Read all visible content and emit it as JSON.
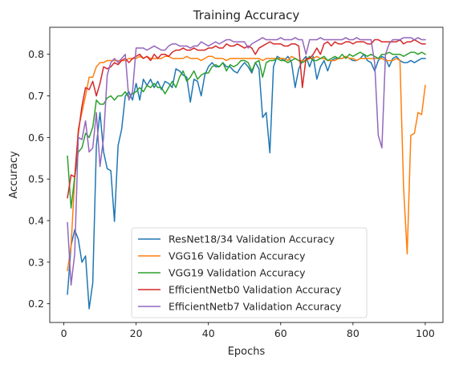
{
  "chart_data": {
    "type": "line",
    "title": "Training Accuracy",
    "xlabel": "Epochs",
    "ylabel": "Accuracy",
    "xlim": [
      -3.9,
      104.9
    ],
    "ylim": [
      0.155,
      0.865
    ],
    "xticks": [
      0,
      20,
      40,
      60,
      80,
      100
    ],
    "yticks": [
      0.2,
      0.3,
      0.4,
      0.5,
      0.6,
      0.7,
      0.8
    ],
    "grid": false,
    "legend_position": "lower-center",
    "x": [
      1,
      2,
      3,
      4,
      5,
      6,
      7,
      8,
      9,
      10,
      11,
      12,
      13,
      14,
      15,
      16,
      17,
      18,
      19,
      20,
      21,
      22,
      23,
      24,
      25,
      26,
      27,
      28,
      29,
      30,
      31,
      32,
      33,
      34,
      35,
      36,
      37,
      38,
      39,
      40,
      41,
      42,
      43,
      44,
      45,
      46,
      47,
      48,
      49,
      50,
      51,
      52,
      53,
      54,
      55,
      56,
      57,
      58,
      59,
      60,
      61,
      62,
      63,
      64,
      65,
      66,
      67,
      68,
      69,
      70,
      71,
      72,
      73,
      74,
      75,
      76,
      77,
      78,
      79,
      80,
      81,
      82,
      83,
      84,
      85,
      86,
      87,
      88,
      89,
      90,
      91,
      92,
      93,
      94,
      95,
      96,
      97,
      98,
      99,
      100
    ],
    "series": [
      {
        "name": "ResNet18/34 Validation Accuracy",
        "color": "#1f77b4",
        "values": [
          0.223,
          0.34,
          0.378,
          0.355,
          0.3,
          0.315,
          0.188,
          0.25,
          0.58,
          0.66,
          0.565,
          0.525,
          0.52,
          0.398,
          0.58,
          0.62,
          0.7,
          0.71,
          0.69,
          0.73,
          0.69,
          0.74,
          0.725,
          0.74,
          0.72,
          0.735,
          0.715,
          0.735,
          0.73,
          0.72,
          0.765,
          0.76,
          0.75,
          0.745,
          0.685,
          0.74,
          0.735,
          0.7,
          0.75,
          0.77,
          0.78,
          0.77,
          0.77,
          0.78,
          0.77,
          0.77,
          0.76,
          0.755,
          0.77,
          0.78,
          0.77,
          0.755,
          0.78,
          0.765,
          0.648,
          0.66,
          0.563,
          0.77,
          0.795,
          0.79,
          0.785,
          0.795,
          0.78,
          0.72,
          0.765,
          0.785,
          0.795,
          0.77,
          0.795,
          0.74,
          0.77,
          0.785,
          0.76,
          0.785,
          0.79,
          0.79,
          0.79,
          0.795,
          0.79,
          0.785,
          0.785,
          0.79,
          0.8,
          0.785,
          0.78,
          0.76,
          0.785,
          0.795,
          0.79,
          0.77,
          0.79,
          0.795,
          0.785,
          0.78,
          0.78,
          0.785,
          0.78,
          0.785,
          0.79,
          0.79
        ]
      },
      {
        "name": "VGG16 Validation Accuracy",
        "color": "#ff7f0e",
        "values": [
          0.28,
          0.34,
          0.5,
          0.62,
          0.66,
          0.7,
          0.745,
          0.745,
          0.77,
          0.78,
          0.78,
          0.785,
          0.785,
          0.785,
          0.785,
          0.785,
          0.785,
          0.79,
          0.79,
          0.79,
          0.795,
          0.79,
          0.795,
          0.79,
          0.79,
          0.79,
          0.79,
          0.795,
          0.795,
          0.79,
          0.79,
          0.79,
          0.79,
          0.795,
          0.79,
          0.79,
          0.79,
          0.785,
          0.79,
          0.795,
          0.795,
          0.79,
          0.79,
          0.79,
          0.785,
          0.79,
          0.79,
          0.79,
          0.79,
          0.79,
          0.79,
          0.79,
          0.79,
          0.79,
          0.785,
          0.79,
          0.79,
          0.79,
          0.79,
          0.79,
          0.79,
          0.785,
          0.795,
          0.79,
          0.785,
          0.785,
          0.785,
          0.79,
          0.79,
          0.795,
          0.79,
          0.79,
          0.785,
          0.785,
          0.785,
          0.79,
          0.79,
          0.795,
          0.79,
          0.79,
          0.785,
          0.79,
          0.79,
          0.79,
          0.79,
          0.79,
          0.79,
          0.79,
          0.785,
          0.785,
          0.785,
          0.79,
          0.785,
          0.48,
          0.32,
          0.605,
          0.61,
          0.66,
          0.655,
          0.725
        ]
      },
      {
        "name": "VGG19 Validation Accuracy",
        "color": "#2ca02c",
        "values": [
          0.555,
          0.43,
          0.505,
          0.565,
          0.575,
          0.61,
          0.6,
          0.625,
          0.69,
          0.68,
          0.68,
          0.695,
          0.7,
          0.69,
          0.7,
          0.7,
          0.71,
          0.695,
          0.705,
          0.71,
          0.72,
          0.71,
          0.725,
          0.72,
          0.73,
          0.72,
          0.72,
          0.705,
          0.72,
          0.735,
          0.72,
          0.745,
          0.76,
          0.735,
          0.745,
          0.76,
          0.74,
          0.75,
          0.755,
          0.755,
          0.77,
          0.775,
          0.77,
          0.78,
          0.76,
          0.775,
          0.77,
          0.775,
          0.785,
          0.785,
          0.78,
          0.76,
          0.78,
          0.785,
          0.745,
          0.78,
          0.785,
          0.785,
          0.79,
          0.785,
          0.785,
          0.78,
          0.785,
          0.79,
          0.785,
          0.78,
          0.785,
          0.795,
          0.785,
          0.785,
          0.79,
          0.795,
          0.785,
          0.79,
          0.795,
          0.79,
          0.8,
          0.79,
          0.8,
          0.795,
          0.8,
          0.805,
          0.8,
          0.795,
          0.8,
          0.795,
          0.79,
          0.8,
          0.8,
          0.805,
          0.8,
          0.8,
          0.8,
          0.795,
          0.8,
          0.805,
          0.805,
          0.8,
          0.805,
          0.8
        ]
      },
      {
        "name": "EfficientNetb0 Validation Accuracy",
        "color": "#d62728",
        "values": [
          0.455,
          0.51,
          0.505,
          0.61,
          0.675,
          0.72,
          0.715,
          0.735,
          0.7,
          0.73,
          0.77,
          0.765,
          0.77,
          0.78,
          0.775,
          0.785,
          0.79,
          0.78,
          0.79,
          0.795,
          0.8,
          0.79,
          0.795,
          0.785,
          0.8,
          0.79,
          0.8,
          0.8,
          0.795,
          0.805,
          0.81,
          0.81,
          0.815,
          0.81,
          0.81,
          0.815,
          0.81,
          0.81,
          0.81,
          0.815,
          0.815,
          0.82,
          0.815,
          0.815,
          0.825,
          0.82,
          0.82,
          0.825,
          0.82,
          0.815,
          0.82,
          0.815,
          0.8,
          0.815,
          0.82,
          0.825,
          0.83,
          0.825,
          0.825,
          0.825,
          0.82,
          0.82,
          0.825,
          0.825,
          0.82,
          0.72,
          0.79,
          0.79,
          0.8,
          0.815,
          0.8,
          0.825,
          0.83,
          0.82,
          0.83,
          0.825,
          0.825,
          0.83,
          0.83,
          0.825,
          0.83,
          0.83,
          0.83,
          0.825,
          0.825,
          0.835,
          0.835,
          0.83,
          0.83,
          0.83,
          0.83,
          0.83,
          0.835,
          0.825,
          0.83,
          0.83,
          0.835,
          0.83,
          0.825,
          0.825
        ]
      },
      {
        "name": "EfficientNetb7 Validation Accuracy",
        "color": "#9467bd",
        "values": [
          0.395,
          0.245,
          0.32,
          0.6,
          0.595,
          0.64,
          0.565,
          0.575,
          0.66,
          0.53,
          0.6,
          0.75,
          0.78,
          0.79,
          0.78,
          0.79,
          0.8,
          0.69,
          0.71,
          0.815,
          0.815,
          0.815,
          0.81,
          0.815,
          0.82,
          0.815,
          0.81,
          0.81,
          0.82,
          0.825,
          0.825,
          0.82,
          0.82,
          0.82,
          0.815,
          0.82,
          0.82,
          0.83,
          0.825,
          0.82,
          0.825,
          0.83,
          0.825,
          0.83,
          0.835,
          0.835,
          0.83,
          0.83,
          0.83,
          0.83,
          0.815,
          0.825,
          0.83,
          0.835,
          0.84,
          0.835,
          0.835,
          0.835,
          0.835,
          0.84,
          0.835,
          0.835,
          0.835,
          0.84,
          0.835,
          0.835,
          0.8,
          0.835,
          0.835,
          0.835,
          0.84,
          0.835,
          0.835,
          0.835,
          0.835,
          0.835,
          0.835,
          0.84,
          0.835,
          0.835,
          0.84,
          0.835,
          0.835,
          0.835,
          0.835,
          0.78,
          0.605,
          0.575,
          0.8,
          0.825,
          0.835,
          0.835,
          0.835,
          0.84,
          0.84,
          0.84,
          0.835,
          0.84,
          0.835,
          0.835
        ]
      }
    ]
  }
}
